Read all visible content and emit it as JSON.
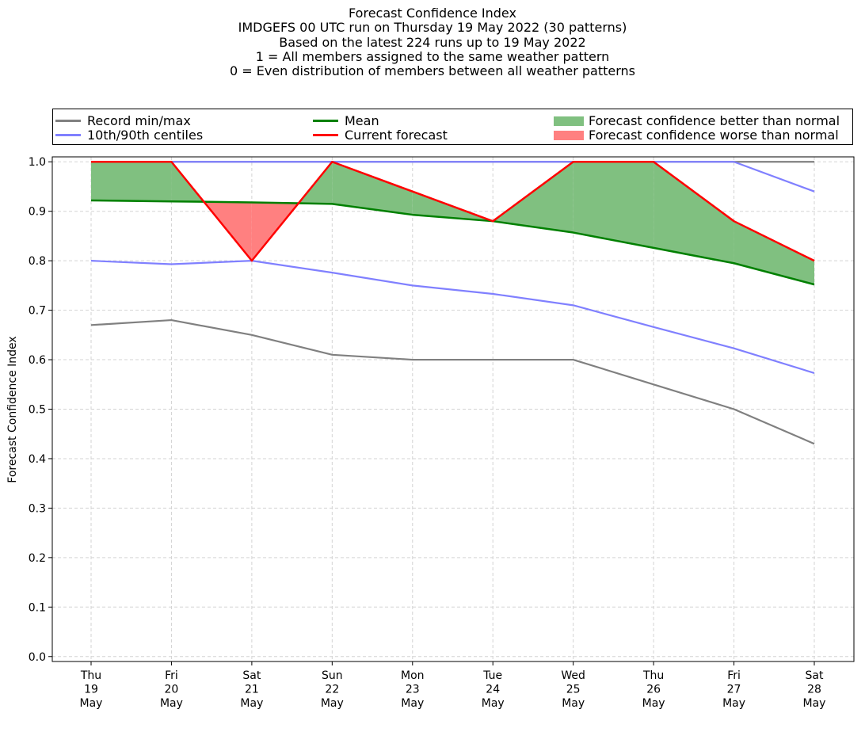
{
  "title_lines": [
    "Forecast Confidence Index",
    "IMDGEFS 00 UTC run on Thursday 19 May 2022 (30 patterns)",
    "Based on the latest 224 runs up to 19 May 2022",
    "1 = All members assigned to the same weather pattern",
    "0 = Even distribution of members between all weather patterns"
  ],
  "legend": {
    "record": "Record min/max",
    "centiles": "10th/90th centiles",
    "mean": "Mean",
    "current": "Current forecast",
    "better": "Forecast confidence better than normal",
    "worse": "Forecast confidence worse than normal"
  },
  "colors": {
    "record": "#808080",
    "centiles": "#8080ff",
    "mean": "#008000",
    "current": "#ff0000",
    "better_fill": "#80c080",
    "worse_fill": "#ff8080",
    "grid": "#d3d3d3"
  },
  "chart_data": {
    "type": "line",
    "ylabel": "Forecast Confidence Index",
    "ylim": [
      -0.01,
      1.01
    ],
    "yticks": [
      0.0,
      0.1,
      0.2,
      0.3,
      0.4,
      0.5,
      0.6,
      0.7,
      0.8,
      0.9,
      1.0
    ],
    "grid": true,
    "legend_position": "top",
    "categories": [
      [
        "Thu",
        "19",
        "May"
      ],
      [
        "Fri",
        "20",
        "May"
      ],
      [
        "Sat",
        "21",
        "May"
      ],
      [
        "Sun",
        "22",
        "May"
      ],
      [
        "Mon",
        "23",
        "May"
      ],
      [
        "Tue",
        "24",
        "May"
      ],
      [
        "Wed",
        "25",
        "May"
      ],
      [
        "Thu",
        "26",
        "May"
      ],
      [
        "Fri",
        "27",
        "May"
      ],
      [
        "Sat",
        "28",
        "May"
      ]
    ],
    "series": [
      {
        "name": "Record min/max",
        "key": "record_max",
        "values": [
          1.0,
          1.0,
          1.0,
          1.0,
          1.0,
          1.0,
          1.0,
          1.0,
          1.0,
          1.0
        ]
      },
      {
        "name": "Record min/max",
        "key": "record_min",
        "values": [
          0.67,
          0.68,
          0.65,
          0.61,
          0.6,
          0.6,
          0.6,
          0.55,
          0.5,
          0.43
        ]
      },
      {
        "name": "10th/90th centiles",
        "key": "p90",
        "values": [
          1.0,
          1.0,
          1.0,
          1.0,
          1.0,
          1.0,
          1.0,
          1.0,
          1.0,
          0.94
        ]
      },
      {
        "name": "10th/90th centiles",
        "key": "p10",
        "values": [
          0.8,
          0.793,
          0.8,
          0.776,
          0.75,
          0.733,
          0.71,
          0.666,
          0.623,
          0.573
        ]
      },
      {
        "name": "Mean",
        "key": "mean",
        "values": [
          0.922,
          0.92,
          0.918,
          0.915,
          0.893,
          0.88,
          0.857,
          0.826,
          0.795,
          0.752
        ]
      },
      {
        "name": "Current forecast",
        "key": "current",
        "values": [
          1.0,
          1.0,
          0.8,
          1.0,
          0.94,
          0.88,
          1.0,
          1.0,
          0.88,
          0.8
        ]
      }
    ]
  }
}
